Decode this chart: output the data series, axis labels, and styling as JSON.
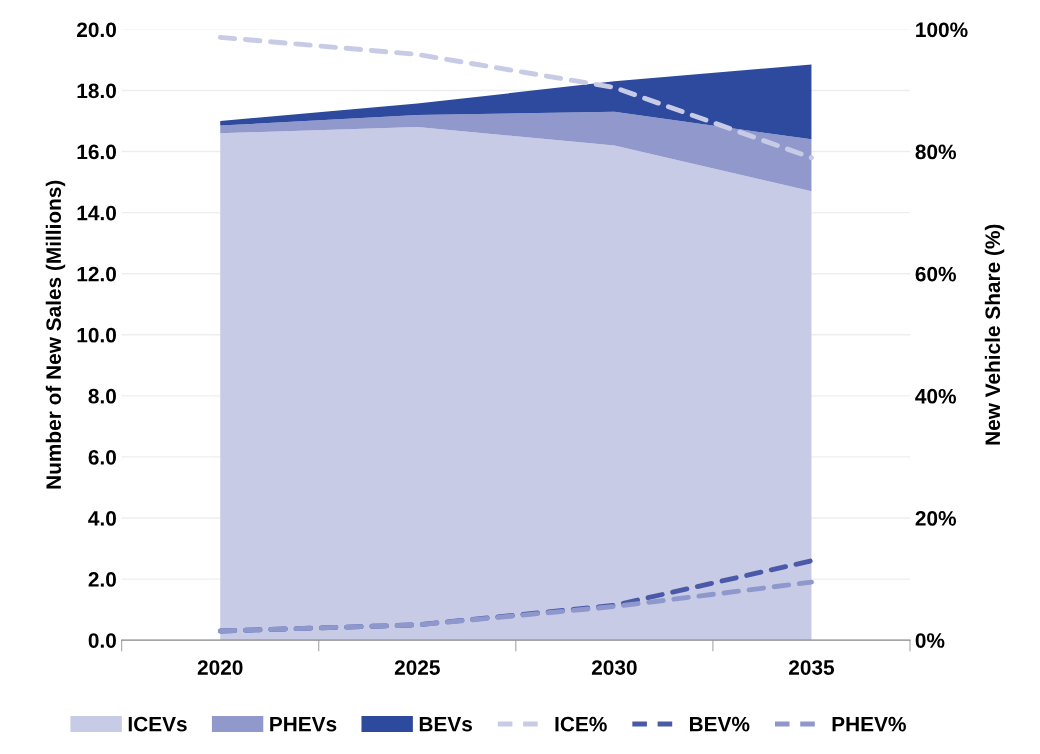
{
  "chart_data": {
    "type": "area",
    "stacked": true,
    "categories": [
      "2020",
      "2025",
      "2030",
      "2035"
    ],
    "ylabel": "Number of New Sales (Millions)",
    "y2label": "New Vehicle Share (%)",
    "ylim": [
      0,
      20
    ],
    "yticks": [
      {
        "value": 0,
        "label": "0.0"
      },
      {
        "value": 2,
        "label": "2.0"
      },
      {
        "value": 4,
        "label": "4.0"
      },
      {
        "value": 6,
        "label": "6.0"
      },
      {
        "value": 8,
        "label": "8.0"
      },
      {
        "value": 10,
        "label": "10.0"
      },
      {
        "value": 12,
        "label": "12.0"
      },
      {
        "value": 14,
        "label": "14.0"
      },
      {
        "value": 16,
        "label": "16.0"
      },
      {
        "value": 18,
        "label": "18.0"
      },
      {
        "value": 20,
        "label": "20.0"
      }
    ],
    "y2lim": [
      0,
      100
    ],
    "y2ticks": [
      {
        "value": 0,
        "label": "0%"
      },
      {
        "value": 20,
        "label": "20%"
      },
      {
        "value": 40,
        "label": "40%"
      },
      {
        "value": 60,
        "label": "60%"
      },
      {
        "value": 80,
        "label": "80%"
      },
      {
        "value": 100,
        "label": "100%"
      }
    ],
    "grid": "y",
    "legend": "bottom",
    "series": [
      {
        "name": "ICEVs",
        "color": "#c8cbe5",
        "values": [
          16.6,
          16.8,
          16.2,
          14.7
        ]
      },
      {
        "name": "PHEVs",
        "color": "#9199cc",
        "values": [
          0.25,
          0.4,
          1.1,
          1.7
        ]
      },
      {
        "name": "BEVs",
        "color": "#2e4a9e",
        "values": [
          0.15,
          0.37,
          1.0,
          2.45
        ]
      },
      {
        "name": "ICE%",
        "type": "line",
        "axis": "y2",
        "line_style": "dashed",
        "color": "#c8cbe5",
        "values": [
          98.7,
          95.9,
          90.5,
          79
        ]
      },
      {
        "name": "BEV%",
        "type": "line",
        "axis": "y2",
        "line_style": "dashed",
        "color": "#4a5aa8",
        "values": [
          1.5,
          2.5,
          5.7,
          13
        ]
      },
      {
        "name": "PHEV%",
        "type": "line",
        "axis": "y2",
        "line_style": "dashed",
        "color": "#8f98cc",
        "values": [
          1.5,
          2.5,
          5.5,
          9.5
        ]
      }
    ]
  }
}
